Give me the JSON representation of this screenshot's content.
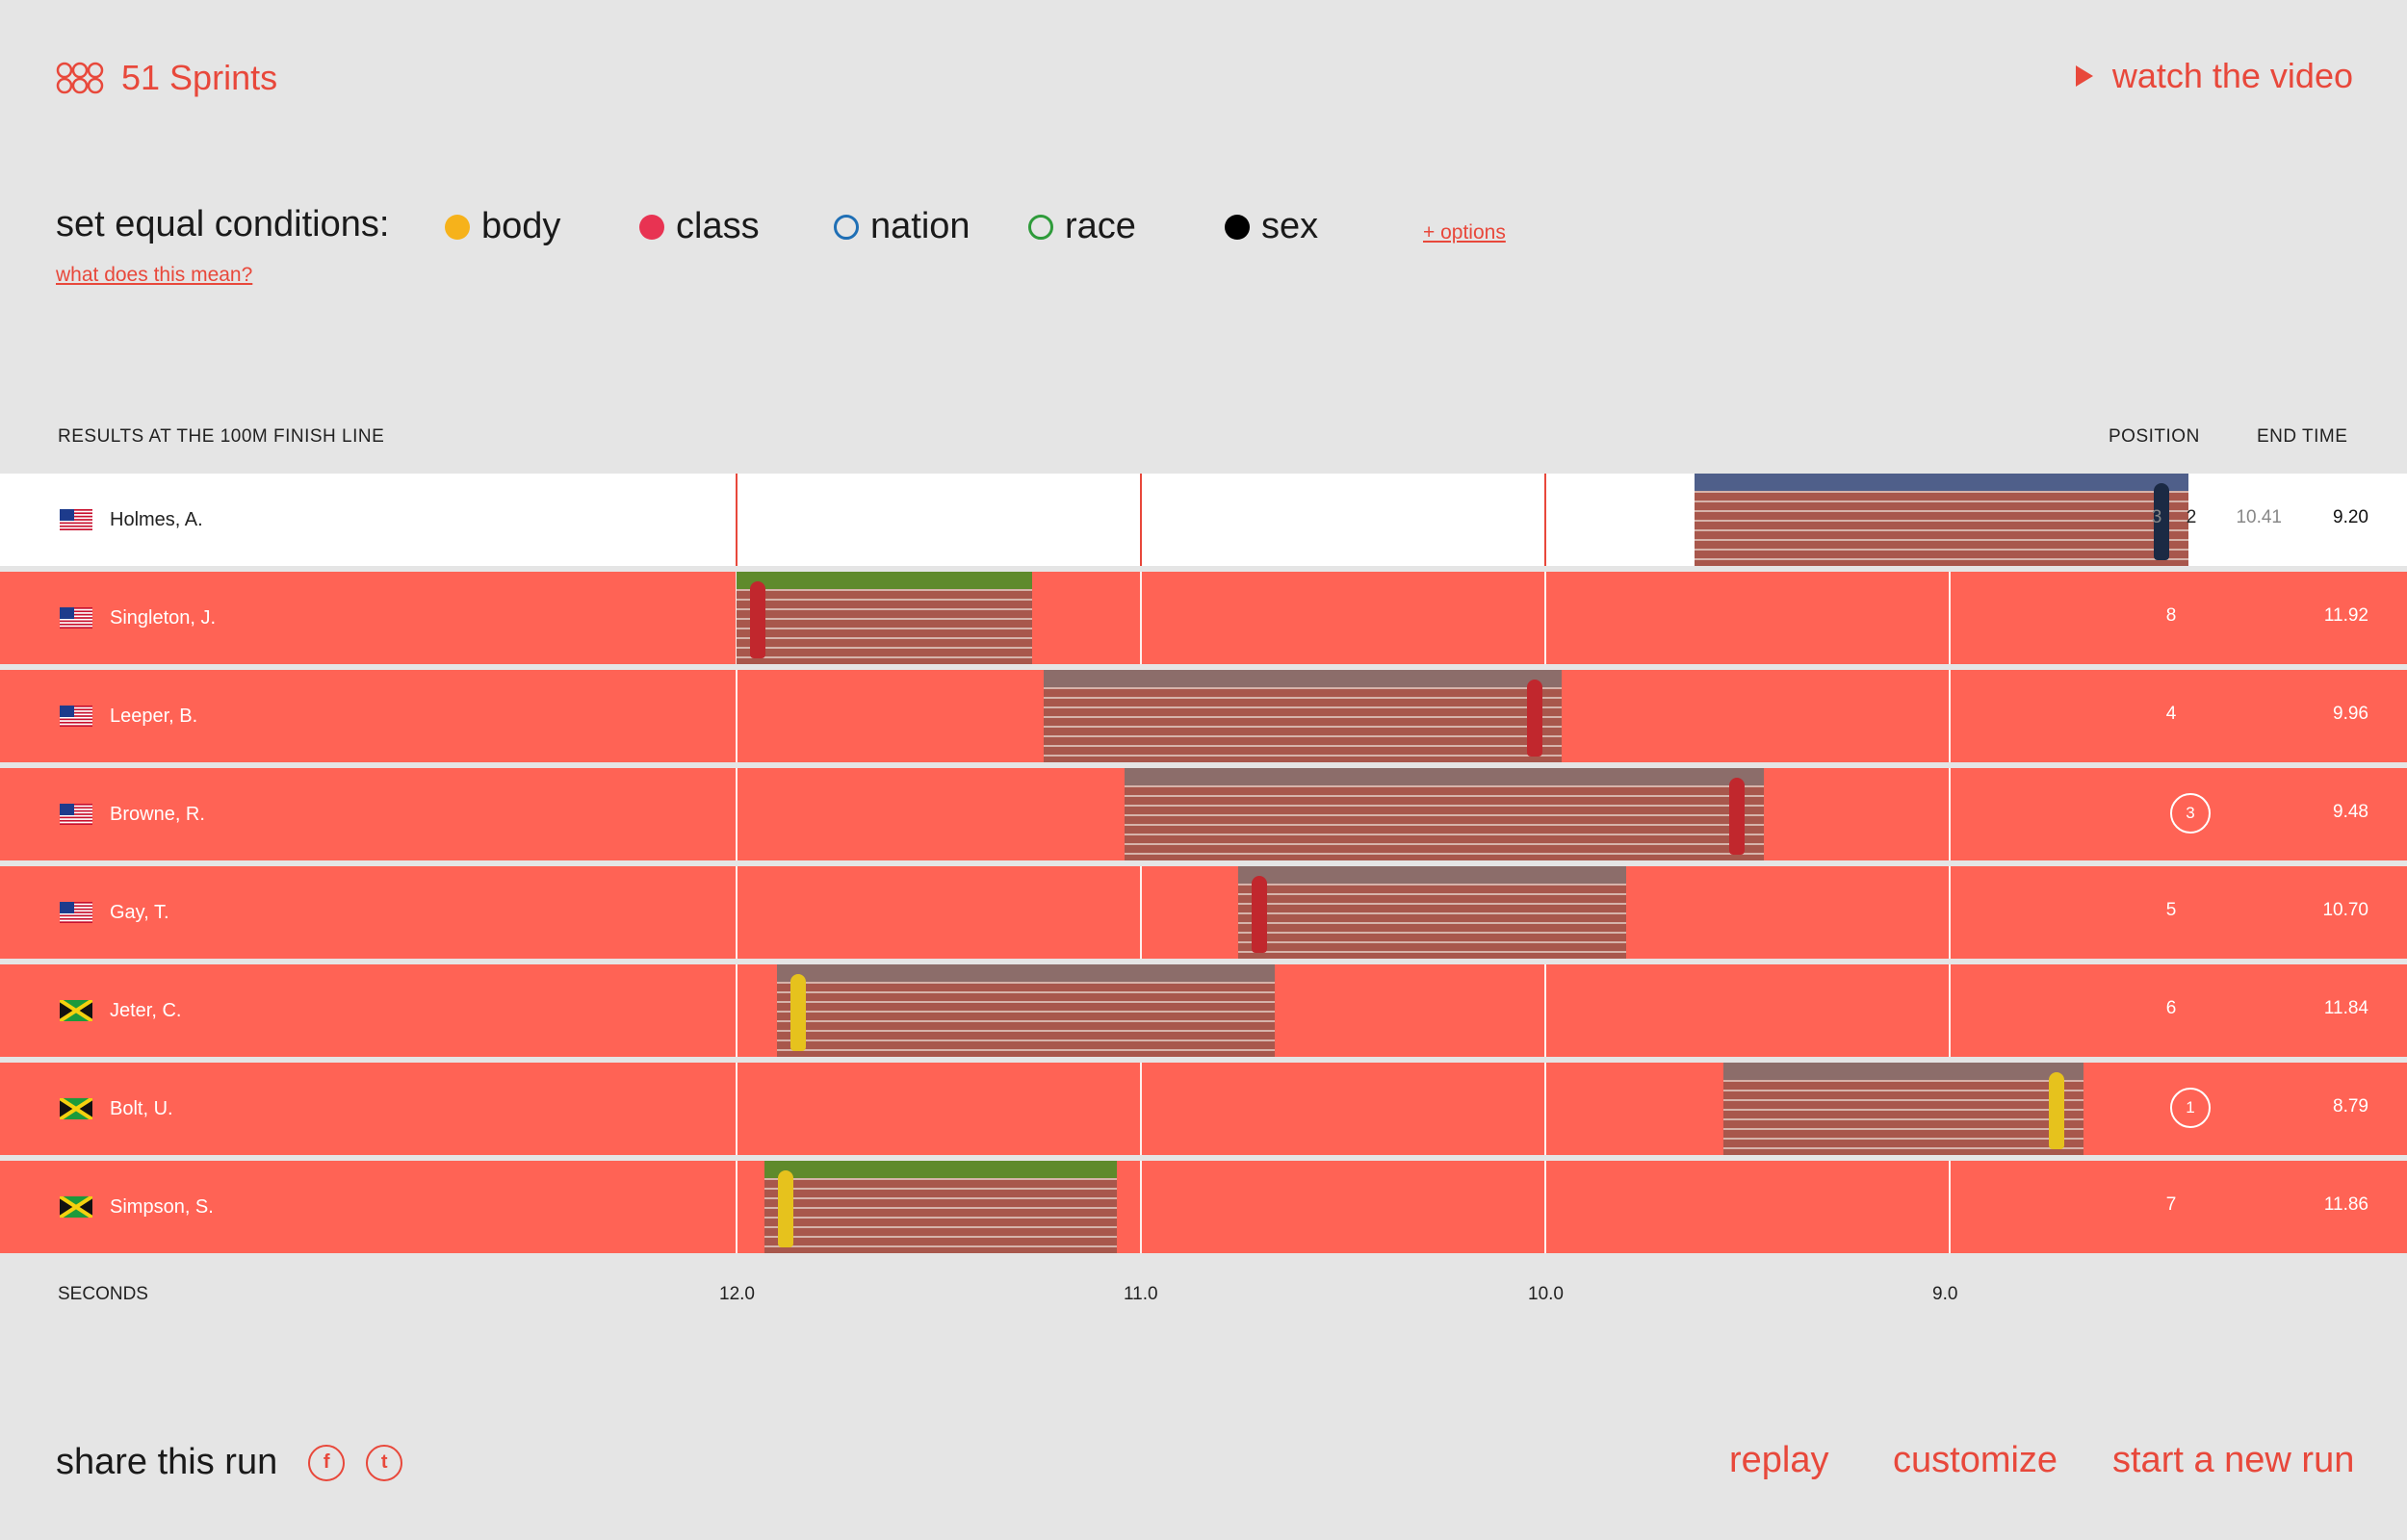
{
  "app": {
    "title": "51 Sprints",
    "watch_label": "watch the video"
  },
  "conditions": {
    "label": "set equal conditions:",
    "what_label": "what does this mean?",
    "options_label": "+ options",
    "items": [
      {
        "label": "body",
        "color": "#f6b21b",
        "filled": true
      },
      {
        "label": "class",
        "color": "#e83352",
        "filled": true
      },
      {
        "label": "nation",
        "color": "#1f6fb5",
        "filled": false
      },
      {
        "label": "race",
        "color": "#2e9b3a",
        "filled": false
      },
      {
        "label": "sex",
        "color": "#000000",
        "filled": true
      }
    ]
  },
  "table": {
    "header_left": "RESULTS AT THE 100M FINISH LINE",
    "header_position": "POSITION",
    "header_end_time": "END TIME",
    "rows": [
      {
        "name": "Holmes, A.",
        "country": "USA",
        "pos_prev": "3",
        "position": "2",
        "time_prev": "10.41",
        "end_time": "9.20",
        "selected": true,
        "photo_start": 9.63,
        "photo_end": 8.41,
        "circled": false
      },
      {
        "name": "Singleton, J.",
        "country": "USA",
        "position": "8",
        "end_time": "11.92",
        "selected": false,
        "photo_start": 12.0,
        "photo_end": 11.27,
        "circled": false
      },
      {
        "name": "Leeper, B.",
        "country": "USA",
        "position": "4",
        "end_time": "9.96",
        "selected": false,
        "photo_start": 11.24,
        "photo_end": 9.96,
        "circled": false
      },
      {
        "name": "Browne, R.",
        "country": "USA",
        "position": "3",
        "end_time": "9.48",
        "selected": false,
        "photo_start": 11.04,
        "photo_end": 9.46,
        "circled": true
      },
      {
        "name": "Gay, T.",
        "country": "USA",
        "position": "5",
        "end_time": "10.70",
        "selected": false,
        "photo_start": 10.76,
        "photo_end": 9.8,
        "circled": false
      },
      {
        "name": "Jeter, C.",
        "country": "JAM",
        "position": "6",
        "end_time": "11.84",
        "selected": false,
        "photo_start": 11.9,
        "photo_end": 10.67,
        "circled": false
      },
      {
        "name": "Bolt, U.",
        "country": "JAM",
        "position": "1",
        "end_time": "8.79",
        "selected": false,
        "photo_start": 9.56,
        "photo_end": 8.67,
        "circled": true
      },
      {
        "name": "Simpson, S.",
        "country": "JAM",
        "position": "7",
        "end_time": "11.86",
        "selected": false,
        "photo_start": 11.93,
        "photo_end": 11.06,
        "circled": false
      }
    ]
  },
  "axis": {
    "label": "SECONDS",
    "ticks": [
      {
        "value": 12.0,
        "label": "12.0"
      },
      {
        "value": 11.0,
        "label": "11.0"
      },
      {
        "value": 10.0,
        "label": "10.0"
      },
      {
        "value": 9.0,
        "label": "9.0"
      }
    ]
  },
  "footer": {
    "share_label": "share this run",
    "facebook_glyph": "f",
    "twitter_glyph": "t",
    "replay_label": "replay",
    "customize_label": "customize",
    "new_run_label": "start a new run"
  },
  "colors": {
    "accent": "#e8483b",
    "row_bg": "#ff6355",
    "selected_bg": "#ffffff",
    "page_bg": "#e5e5e5"
  }
}
